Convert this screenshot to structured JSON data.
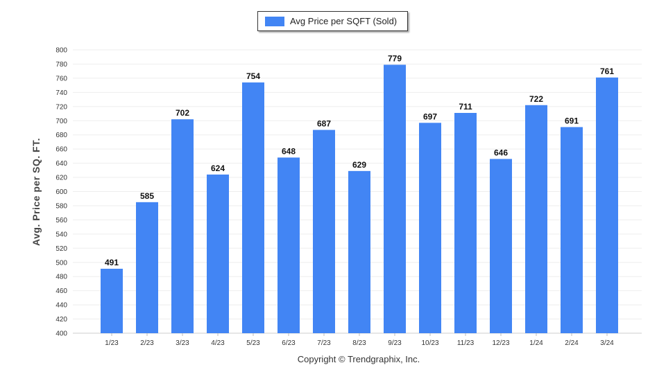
{
  "chart_data": {
    "type": "bar",
    "legend": "Avg Price per SQFT (Sold)",
    "legend_position": "top-center",
    "ylabel": "Avg. Price per SQ. FT.",
    "xlabel": "Copyright © Trendgraphix, Inc.",
    "ylim": [
      400,
      800
    ],
    "ytick_step": 20,
    "grid": true,
    "bar_color": "#4285f4",
    "categories": [
      "1/23",
      "2/23",
      "3/23",
      "4/23",
      "5/23",
      "6/23",
      "7/23",
      "8/23",
      "9/23",
      "10/23",
      "11/23",
      "12/23",
      "1/24",
      "2/24",
      "3/24"
    ],
    "values": [
      491,
      585,
      702,
      624,
      754,
      648,
      687,
      629,
      779,
      697,
      711,
      646,
      722,
      691,
      761
    ]
  }
}
